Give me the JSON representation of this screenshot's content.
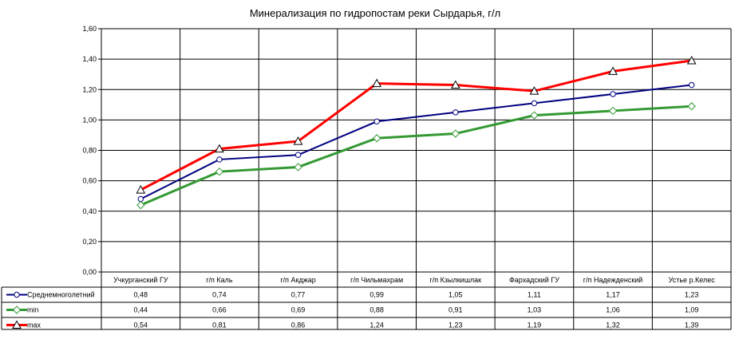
{
  "chart_data": {
    "type": "line",
    "title": "Минерализация по гидропостам реки Сырдарья, г/л",
    "xlabel": "",
    "ylabel": "",
    "ylim": [
      0,
      1.6
    ],
    "y_ticks": [
      "0,00",
      "0,20",
      "0,40",
      "0,60",
      "0,80",
      "1,00",
      "1,20",
      "1,40",
      "1,60"
    ],
    "grid": "vertical and horizontal",
    "legend_placement": "data table below chart",
    "categories": [
      "Учкурганский ГУ",
      "г/п Каль",
      "г/п Акджар",
      "г/п Чильмахрам",
      "г/п Кзылкишлак",
      "Фархадский ГУ",
      "г/п Надежденский",
      "Устье р.Келес"
    ],
    "series": [
      {
        "name": "Среднемноголетний",
        "color": "#000080",
        "marker": "circle",
        "values": [
          0.48,
          0.74,
          0.77,
          0.99,
          1.05,
          1.11,
          1.17,
          1.23
        ],
        "labels": [
          "0,48",
          "0,74",
          "0,77",
          "0,99",
          "1,05",
          "1,11",
          "1,17",
          "1,23"
        ]
      },
      {
        "name": "min",
        "color": "#339933",
        "marker": "diamond",
        "values": [
          0.44,
          0.66,
          0.69,
          0.88,
          0.91,
          1.03,
          1.06,
          1.09
        ],
        "labels": [
          "0,44",
          "0,66",
          "0,69",
          "0,88",
          "0,91",
          "1,03",
          "1,06",
          "1,09"
        ]
      },
      {
        "name": "max",
        "color": "#ff0000",
        "marker": "triangle",
        "values": [
          0.54,
          0.81,
          0.86,
          1.24,
          1.23,
          1.19,
          1.32,
          1.39
        ],
        "labels": [
          "0,54",
          "0,81",
          "0,86",
          "1,24",
          "1,23",
          "1,19",
          "1,32",
          "1,39"
        ]
      }
    ]
  }
}
